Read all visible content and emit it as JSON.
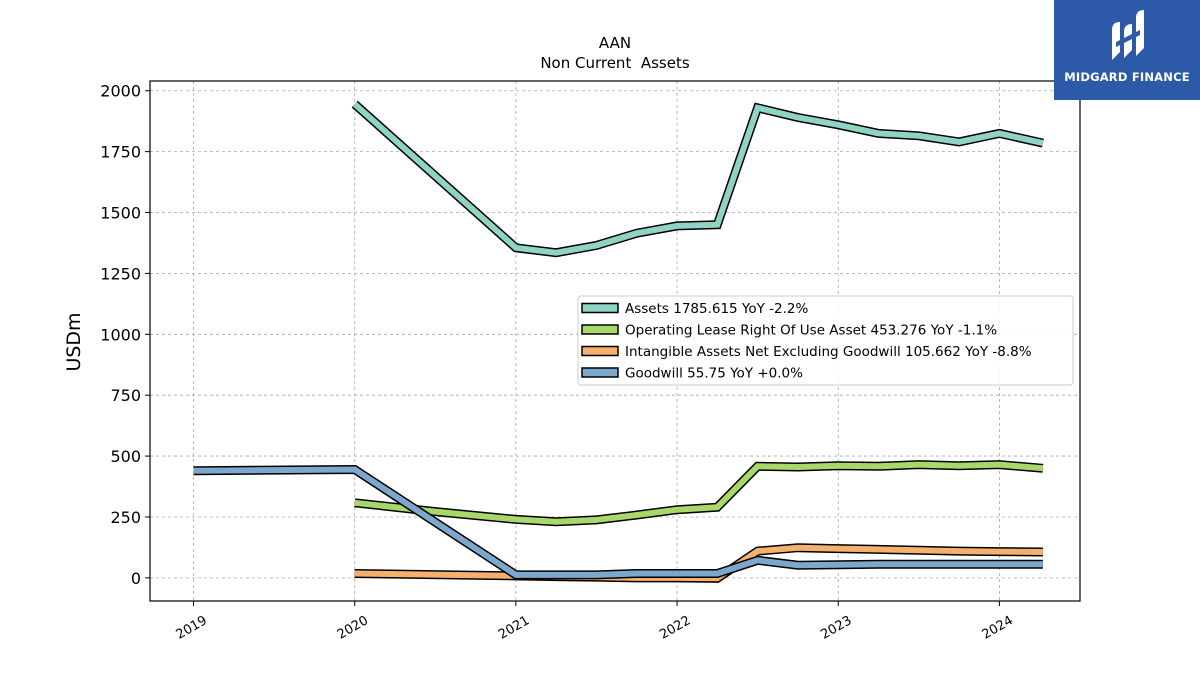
{
  "chart_data": {
    "type": "line",
    "title": "AAN",
    "subtitle": "Non Current  Assets",
    "xlabel": "",
    "ylabel": "USDm",
    "xlim": [
      2018.73,
      2024.5
    ],
    "ylim": [
      -95,
      2040
    ],
    "x_ticks": [
      2019,
      2020,
      2021,
      2022,
      2023,
      2024
    ],
    "x_tick_labels": [
      "2019",
      "2020",
      "2021",
      "2022",
      "2023",
      "2024"
    ],
    "y_ticks": [
      0,
      250,
      500,
      750,
      1000,
      1250,
      1500,
      1750,
      2000
    ],
    "y_tick_labels": [
      "0",
      "250",
      "500",
      "750",
      "1000",
      "1250",
      "1500",
      "1750",
      "2000"
    ],
    "grid": true,
    "legend_position": "center-right",
    "series": [
      {
        "name": "Assets  1785.615 YoY -2.2%",
        "color": "#8fd3c4",
        "points": [
          [
            2020.0,
            1945
          ],
          [
            2021.0,
            1355
          ],
          [
            2021.25,
            1335
          ],
          [
            2021.5,
            1365
          ],
          [
            2021.75,
            1415
          ],
          [
            2022.0,
            1445
          ],
          [
            2022.25,
            1450
          ],
          [
            2022.5,
            1930
          ],
          [
            2022.75,
            1890
          ],
          [
            2023.0,
            1860
          ],
          [
            2023.25,
            1825
          ],
          [
            2023.5,
            1815
          ],
          [
            2023.75,
            1790
          ],
          [
            2024.0,
            1825
          ],
          [
            2024.27,
            1785
          ]
        ]
      },
      {
        "name": "Operating Lease Right Of Use Asset  453.276 YoY -1.1%",
        "color": "#a8d86a",
        "points": [
          [
            2020.0,
            308
          ],
          [
            2020.5,
            272
          ],
          [
            2021.0,
            240
          ],
          [
            2021.25,
            230
          ],
          [
            2021.5,
            238
          ],
          [
            2021.75,
            258
          ],
          [
            2022.0,
            280
          ],
          [
            2022.25,
            290
          ],
          [
            2022.5,
            458
          ],
          [
            2022.75,
            455
          ],
          [
            2023.0,
            460
          ],
          [
            2023.25,
            458
          ],
          [
            2023.5,
            465
          ],
          [
            2023.75,
            460
          ],
          [
            2024.0,
            465
          ],
          [
            2024.27,
            450
          ]
        ]
      },
      {
        "name": "Intangible Assets Net Excluding Goodwill  105.662 YoY -8.8%",
        "color": "#f5b06e",
        "points": [
          [
            2020.0,
            18
          ],
          [
            2021.0,
            8
          ],
          [
            2021.25,
            5
          ],
          [
            2021.5,
            3
          ],
          [
            2021.75,
            0
          ],
          [
            2022.0,
            0
          ],
          [
            2022.25,
            -2
          ],
          [
            2022.5,
            110
          ],
          [
            2022.75,
            124
          ],
          [
            2023.0,
            120
          ],
          [
            2023.25,
            117
          ],
          [
            2023.5,
            113
          ],
          [
            2023.75,
            110
          ],
          [
            2024.0,
            108
          ],
          [
            2024.27,
            106
          ]
        ]
      },
      {
        "name": "Goodwill  55.75 YoY +0.0%",
        "color": "#7ba8cc",
        "points": [
          [
            2019.0,
            440
          ],
          [
            2020.0,
            445
          ],
          [
            2021.0,
            12
          ],
          [
            2021.5,
            12
          ],
          [
            2021.75,
            18
          ],
          [
            2022.0,
            18
          ],
          [
            2022.25,
            18
          ],
          [
            2022.5,
            72
          ],
          [
            2022.75,
            52
          ],
          [
            2023.0,
            54
          ],
          [
            2023.25,
            56
          ],
          [
            2023.5,
            56
          ],
          [
            2023.75,
            56
          ],
          [
            2024.0,
            56
          ],
          [
            2024.27,
            56
          ]
        ]
      }
    ]
  },
  "logo": {
    "text": "MIDGARD FINANCE",
    "color": "#2d5aa8"
  }
}
